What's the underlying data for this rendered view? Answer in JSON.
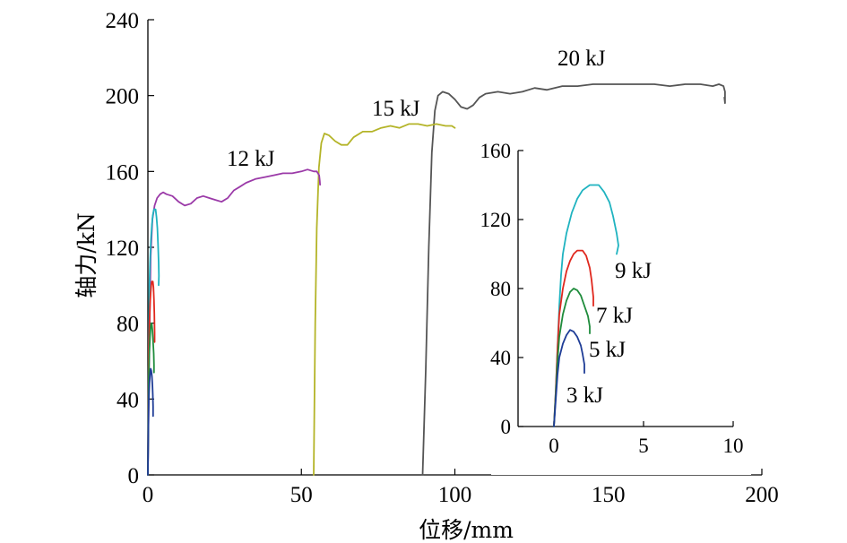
{
  "chart_data": {
    "type": "line",
    "xlabel": "位移/mm",
    "ylabel": "轴力/kN",
    "xlim": [
      0,
      200
    ],
    "ylim": [
      0,
      240
    ],
    "x_ticks": [
      "0",
      "50",
      "100",
      "150",
      "200"
    ],
    "y_ticks": [
      "0",
      "40",
      "80",
      "120",
      "160",
      "200",
      "240"
    ],
    "grid": false,
    "series": [
      {
        "name": "20 kJ",
        "color": "#555555",
        "x": [
          89.5,
          90.5,
          91.5,
          92.5,
          93.5,
          94.5,
          96,
          98,
          100,
          102,
          104,
          106,
          108,
          110,
          114,
          118,
          122,
          126,
          130,
          135,
          140,
          145,
          150,
          155,
          160,
          165,
          170,
          175,
          180,
          184,
          186,
          187.5,
          188,
          188,
          187.8
        ],
        "y": [
          0,
          55,
          120,
          170,
          192,
          200,
          202,
          201,
          198,
          194,
          193,
          195,
          199,
          201,
          202,
          201,
          202,
          204,
          203,
          205,
          205,
          206,
          206,
          206,
          206,
          206,
          205,
          206,
          206,
          205,
          206,
          205,
          202,
          196,
          199
        ]
      },
      {
        "name": "15 kJ",
        "color": "#b4b428",
        "x": [
          54,
          54.5,
          55,
          55.7,
          56.5,
          57.5,
          59,
          61,
          63,
          65,
          67,
          70,
          73,
          76,
          79,
          82,
          85,
          88,
          91,
          94,
          97,
          99,
          100
        ],
        "y": [
          0,
          80,
          130,
          162,
          175,
          180,
          179,
          176,
          174,
          174,
          178,
          181,
          181,
          183,
          184,
          183,
          185,
          185,
          184,
          185,
          184,
          184,
          183
        ]
      },
      {
        "name": "12 kJ",
        "color": "#9b3aa8",
        "x": [
          0,
          0.4,
          0.9,
          1.5,
          2.2,
          3,
          4,
          5,
          6,
          8,
          10,
          12,
          14,
          16,
          18,
          20,
          22,
          24,
          26,
          28,
          30,
          32,
          35,
          38,
          41,
          44,
          47,
          50,
          52,
          54,
          55,
          55.8,
          56,
          56.1
        ],
        "y": [
          0,
          60,
          115,
          135,
          142,
          146,
          148,
          149,
          148,
          147,
          144,
          142,
          143,
          146,
          147,
          146,
          145,
          144,
          146,
          150,
          152,
          154,
          156,
          157,
          158,
          159,
          159,
          160,
          161,
          160,
          160,
          158,
          155,
          153
        ]
      },
      {
        "name": "9 kJ",
        "color": "#1fb3c0",
        "x": [
          0,
          0.1,
          0.2,
          0.3,
          0.4,
          0.5,
          0.7,
          1.0,
          1.3,
          1.6,
          2.0,
          2.5,
          2.8,
          3.1,
          3.3,
          3.5,
          3.6,
          3.5
        ],
        "y": [
          0,
          20,
          45,
          70,
          88,
          100,
          112,
          124,
          132,
          137,
          140,
          140,
          136,
          130,
          122,
          112,
          105,
          100
        ]
      },
      {
        "name": "7 kJ",
        "color": "#e0281e",
        "x": [
          0,
          0.1,
          0.2,
          0.3,
          0.5,
          0.7,
          0.9,
          1.1,
          1.3,
          1.6,
          1.8,
          2.0,
          2.1,
          2.2,
          2.2
        ],
        "y": [
          0,
          20,
          45,
          65,
          80,
          90,
          96,
          100,
          102,
          102,
          99,
          92,
          85,
          75,
          70
        ]
      },
      {
        "name": "5 kJ",
        "color": "#1f8c3c",
        "x": [
          0,
          0.1,
          0.2,
          0.3,
          0.5,
          0.7,
          0.9,
          1.1,
          1.3,
          1.5,
          1.7,
          1.9,
          2.0,
          2.0
        ],
        "y": [
          0,
          18,
          38,
          52,
          65,
          73,
          78,
          80,
          79,
          76,
          70,
          64,
          58,
          54
        ]
      },
      {
        "name": "3 kJ",
        "color": "#1e3c96",
        "x": [
          0,
          0.1,
          0.2,
          0.3,
          0.5,
          0.7,
          0.9,
          1.1,
          1.3,
          1.5,
          1.6,
          1.7,
          1.7
        ],
        "y": [
          0,
          15,
          30,
          40,
          48,
          53,
          56,
          55,
          52,
          47,
          42,
          36,
          31
        ]
      }
    ],
    "annotations": [
      "20 kJ",
      "15 kJ",
      "12 kJ"
    ],
    "inset": {
      "xlim": [
        -2,
        10
      ],
      "ylim": [
        0,
        160
      ],
      "x_ticks": [
        "0",
        "5",
        "10"
      ],
      "y_ticks": [
        "0",
        "40",
        "80",
        "120",
        "160"
      ],
      "series_names": [
        "9 kJ",
        "7 kJ",
        "5 kJ",
        "3 kJ"
      ],
      "annotations": [
        "9 kJ",
        "7 kJ",
        "5 kJ",
        "3 kJ"
      ]
    }
  }
}
